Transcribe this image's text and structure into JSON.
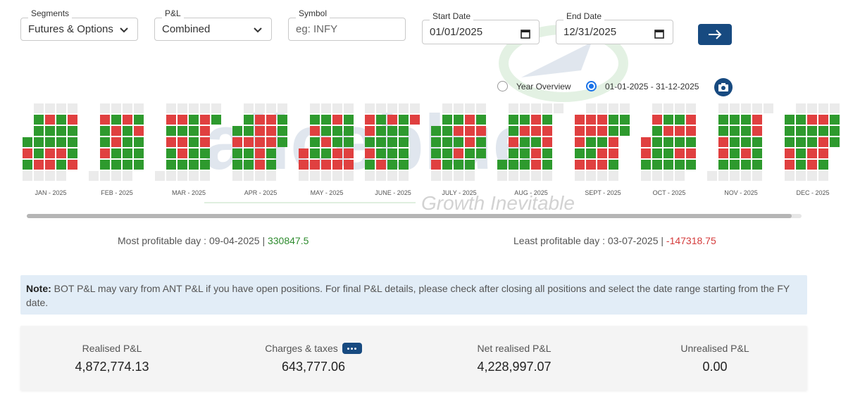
{
  "filters": {
    "segments": {
      "legend": "Segments",
      "value": "Futures & Options"
    },
    "pnl": {
      "legend": "P&L",
      "value": "Combined"
    },
    "symbol": {
      "legend": "Symbol",
      "placeholder": "eg: INFY"
    },
    "start_date": {
      "legend": "Start Date",
      "value": "01/01/2025"
    },
    "end_date": {
      "legend": "End Date",
      "value": "12/31/2025"
    }
  },
  "view_options": {
    "year_overview": "Year Overview",
    "date_range": "01-01-2025 - 31-12-2025",
    "selected": "date_range"
  },
  "watermark": {
    "tagline": "Growth Inevitable"
  },
  "months": [
    "JAN - 2025",
    "FEB - 2025",
    "MAR - 2025",
    "APR - 2025",
    "MAY - 2025",
    "JUNE - 2025",
    "JULY - 2025",
    "AUG - 2025",
    "SEPT - 2025",
    "OCT - 2025",
    "NOV - 2025",
    "DEC - 2025"
  ],
  "heatmap_colors": {
    "profit": "#2e9a2e",
    "loss": "#e04040",
    "empty": "#ebebeb"
  },
  "stats": {
    "most_label": "Most profitable day : 09-04-2025 |",
    "most_value": "330847.5",
    "least_label": "Least profitable day : 03-07-2025 |",
    "least_value": "-147318.75"
  },
  "note": {
    "label": "Note:",
    "text": " BOT P&L may vary from ANT P&L if you have open positions. For final P&L details, please check after closing all positions and select the date range starting from the FY date."
  },
  "summary": {
    "realised": {
      "label": "Realised P&L",
      "value": "4,872,774.13"
    },
    "charges": {
      "label": "Charges & taxes",
      "value": "643,777.06"
    },
    "net": {
      "label": "Net realised P&L",
      "value": "4,228,997.07"
    },
    "unrealised": {
      "label": "Unrealised P&L",
      "value": "0.00"
    }
  }
}
